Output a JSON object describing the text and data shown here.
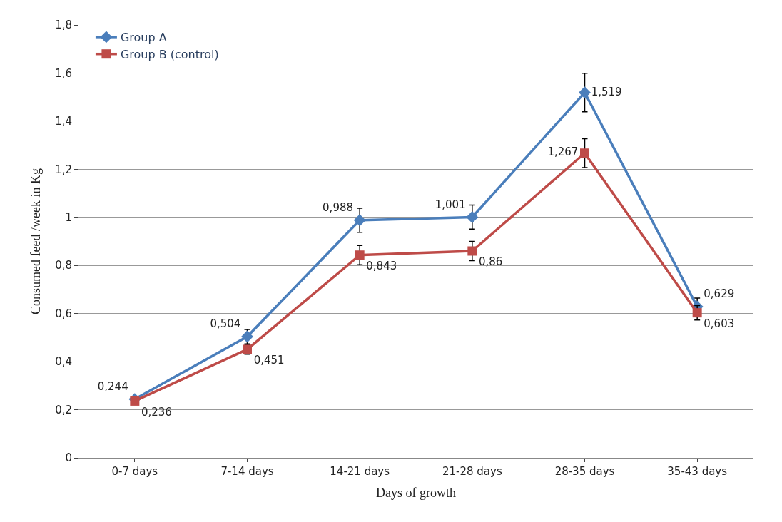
{
  "chart_data": {
    "type": "line",
    "xlabel": "Days of growth",
    "ylabel": "Consumed feed /week in Kg",
    "categories": [
      "0-7 days",
      "7-14 days",
      "14-21 days",
      "21-28 days",
      "28-35 days",
      "35-43 days"
    ],
    "series": [
      {
        "name": "Group A",
        "color": "#4a7ebb",
        "marker": "diamond",
        "values": [
          0.244,
          0.504,
          0.988,
          1.001,
          1.519,
          0.629
        ],
        "value_labels": [
          "0,244",
          "0,504",
          "0,988",
          "1,001",
          "1,519",
          "0,629"
        ],
        "errors": [
          null,
          0.03,
          0.05,
          0.05,
          0.08,
          0.035
        ]
      },
      {
        "name": "Group B (control)",
        "color": "#be4b48",
        "marker": "square",
        "values": [
          0.236,
          0.451,
          0.843,
          0.86,
          1.267,
          0.603
        ],
        "value_labels": [
          "0,236",
          "0,451",
          "0,843",
          "0,86",
          "1,267",
          "0,603"
        ],
        "errors": [
          null,
          0.02,
          0.04,
          0.04,
          0.06,
          0.03
        ]
      }
    ],
    "ylim": [
      0,
      1.8
    ],
    "yticks": [
      0,
      {
        "value": 0.2,
        "label": "0,2"
      },
      {
        "value": 0.4,
        "label": "0,4"
      },
      {
        "value": 0.6,
        "label": "0,6"
      },
      {
        "value": 0.8,
        "label": "0,8"
      },
      1,
      {
        "value": 1.2,
        "label": "1,2"
      },
      {
        "value": 1.4,
        "label": "1,4"
      },
      {
        "value": 1.6,
        "label": "1,6"
      },
      {
        "value": 1.8,
        "label": "1,8"
      }
    ],
    "grid": "y",
    "legend": "top left",
    "line_style": "solid"
  }
}
